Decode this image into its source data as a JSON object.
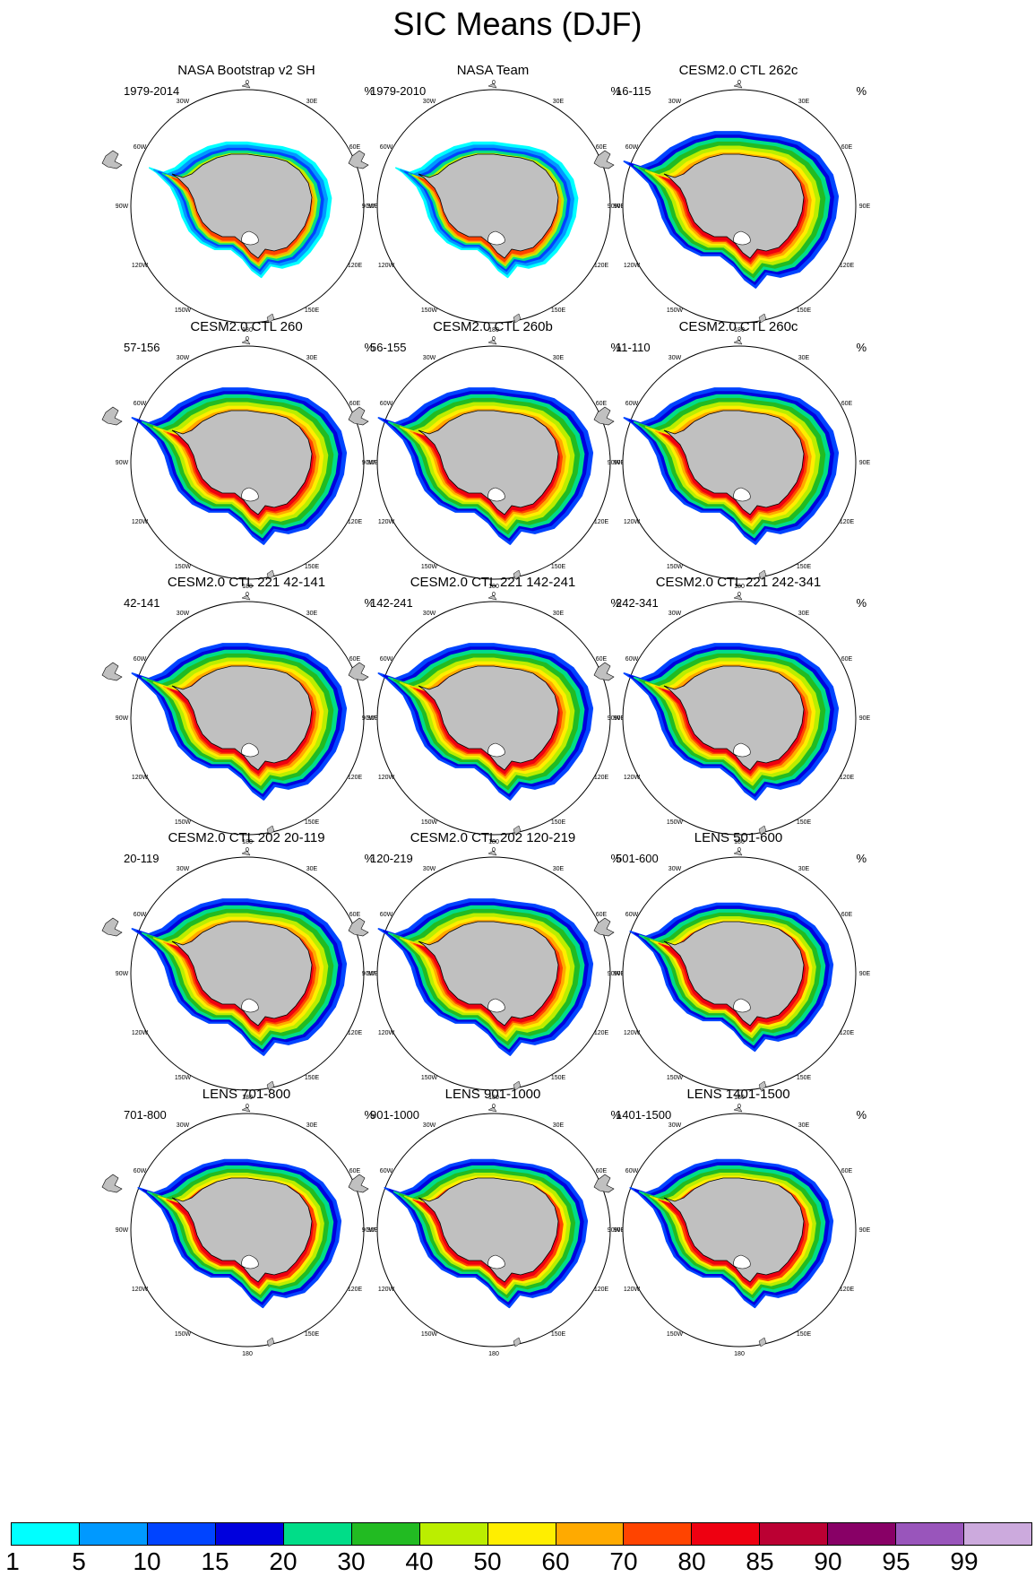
{
  "figure": {
    "title": "SIC Means (DJF)",
    "unit_label": "%"
  },
  "map_labels": {
    "top": "0",
    "bottom": "180",
    "left_side": [
      "30W",
      "60W",
      "90W",
      "120W",
      "150W"
    ],
    "right_side": [
      "30E",
      "60E",
      "90E",
      "120E",
      "150E"
    ]
  },
  "panels": [
    {
      "title": "NASA Bootstrap v2 SH",
      "years": "1979-2014",
      "style": "obs1"
    },
    {
      "title": "NASA Team",
      "years": "1979-2010",
      "style": "obs2"
    },
    {
      "title": "CESM2.0 CTL 262c",
      "years": "16-115",
      "style": "model"
    },
    {
      "title": "CESM2.0 CTL 260",
      "years": "57-156",
      "style": "model"
    },
    {
      "title": "CESM2.0 CTL 260b",
      "years": "56-155",
      "style": "model"
    },
    {
      "title": "CESM2.0 CTL 260c",
      "years": "11-110",
      "style": "model"
    },
    {
      "title": "CESM2.0 CTL 221 42-141",
      "years": "42-141",
      "style": "model"
    },
    {
      "title": "CESM2.0 CTL 221 142-241",
      "years": "142-241",
      "style": "model"
    },
    {
      "title": "CESM2.0 CTL 221 242-341",
      "years": "242-341",
      "style": "model"
    },
    {
      "title": "CESM2.0 CTL 202 20-119",
      "years": "20-119",
      "style": "model"
    },
    {
      "title": "CESM2.0 CTL 202 120-219",
      "years": "120-219",
      "style": "model"
    },
    {
      "title": "LENS 501-600",
      "years": "501-600",
      "style": "lens"
    },
    {
      "title": "LENS 701-800",
      "years": "701-800",
      "style": "lens"
    },
    {
      "title": "LENS 901-1000",
      "years": "901-1000",
      "style": "lens"
    },
    {
      "title": "LENS 1401-1500",
      "years": "1401-1500",
      "style": "lens"
    }
  ],
  "colorbar": {
    "colors": [
      "#00ffff",
      "#0099ff",
      "#0044ff",
      "#0000dd",
      "#00dd88",
      "#22bb22",
      "#bbee00",
      "#ffee00",
      "#ffaa00",
      "#ff4400",
      "#ee0011",
      "#bb0033",
      "#880066",
      "#9955bb",
      "#ccaadd"
    ],
    "labels": [
      "1",
      "5",
      "10",
      "15",
      "20",
      "30",
      "40",
      "50",
      "60",
      "70",
      "80",
      "85",
      "90",
      "95",
      "99"
    ]
  },
  "colors": {
    "land": "#c0c0c0",
    "coastline": "#000000",
    "ocean": "#ffffff"
  }
}
